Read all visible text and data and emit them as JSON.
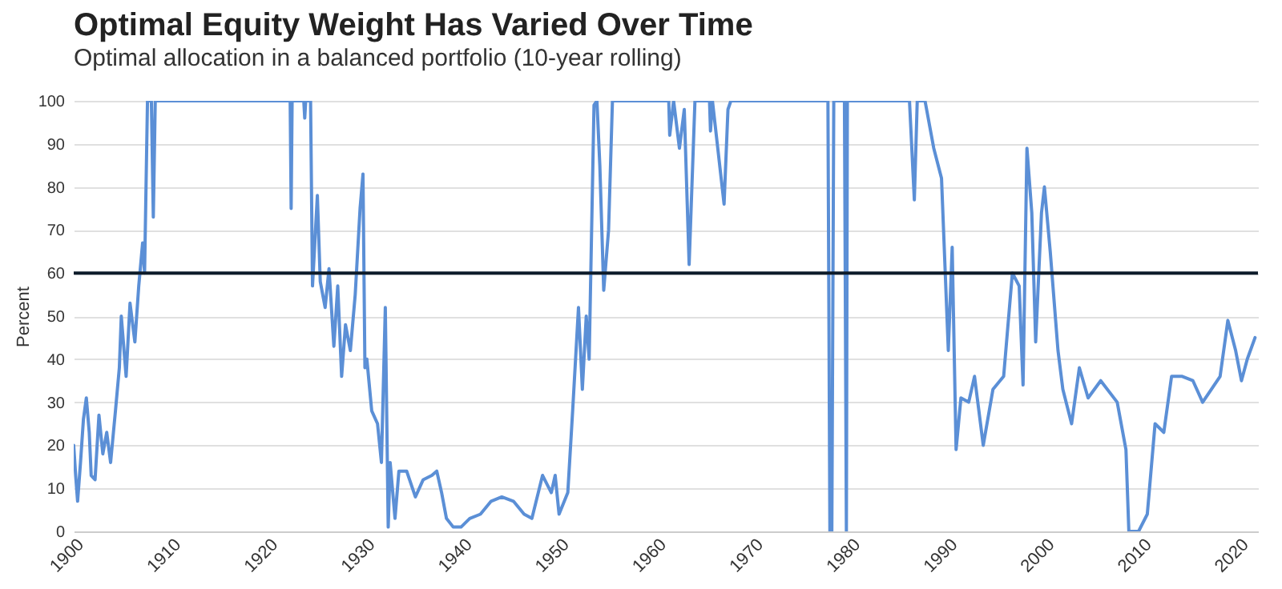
{
  "chart_data": {
    "type": "line",
    "title": "Optimal Equity Weight Has Varied Over Time",
    "subtitle": "Optimal allocation in a balanced portfolio (10-year rolling)",
    "ylabel": "Percent",
    "x": [
      1900,
      1900.2,
      1900.4,
      1900.7,
      1901.0,
      1901.3,
      1901.6,
      1901.8,
      1902.2,
      1902.6,
      1903.0,
      1903.4,
      1903.8,
      1904.3,
      1904.7,
      1904.9,
      1905.4,
      1905.8,
      1906.3,
      1906.7,
      1907.1,
      1907.3,
      1907.6,
      1908.0,
      1908.2,
      1908.4,
      1922.3,
      1922.4,
      1922.5,
      1922.6,
      1923.7,
      1923.8,
      1923.9,
      1924.4,
      1924.6,
      1925.1,
      1925.4,
      1925.9,
      1926.3,
      1926.8,
      1927.2,
      1927.6,
      1928.0,
      1928.5,
      1929.0,
      1929.5,
      1929.8,
      1930.0,
      1930.2,
      1930.7,
      1931.3,
      1931.7,
      1932.1,
      1932.4,
      1932.6,
      1933.1,
      1933.5,
      1934.3,
      1935.2,
      1936.0,
      1936.9,
      1937.4,
      1937.9,
      1938.4,
      1939.1,
      1939.9,
      1940.8,
      1941.9,
      1943.0,
      1944.1,
      1945.3,
      1946.4,
      1947.2,
      1948.3,
      1949.2,
      1949.6,
      1950.0,
      1950.9,
      1951.4,
      1952.0,
      1952.4,
      1952.8,
      1953.1,
      1953.6,
      1953.9,
      1954.2,
      1954.6,
      1955.1,
      1955.5,
      1961.3,
      1961.4,
      1961.8,
      1962.4,
      1962.9,
      1963.4,
      1964.0,
      1965.5,
      1965.6,
      1965.8,
      1967.0,
      1967.4,
      1967.7,
      1977.7,
      1977.9,
      1978.1,
      1978.3,
      1979.4,
      1979.6,
      1979.7,
      1986.1,
      1986.6,
      1986.9,
      1987.7,
      1988.6,
      1989.4,
      1990.1,
      1990.5,
      1990.9,
      1991.4,
      1992.2,
      1992.8,
      1993.7,
      1994.7,
      1995.8,
      1996.7,
      1997.4,
      1997.8,
      1998.2,
      1998.7,
      1999.1,
      1999.7,
      2000.0,
      2000.6,
      2001.4,
      2001.9,
      2002.8,
      2003.6,
      2004.5,
      2005.8,
      2007.5,
      2008.4,
      2008.7,
      2009.7,
      2010.6,
      2011.4,
      2012.3,
      2013.1,
      2014.2,
      2015.3,
      2016.3,
      2017.5,
      2018.1,
      2018.9,
      2019.7,
      2020.3,
      2020.9,
      2021.7
    ],
    "series": [
      {
        "color": "#5b8fd6",
        "values": [
          20,
          13,
          7,
          16,
          26,
          31,
          23,
          13,
          12,
          27,
          18,
          23,
          16,
          28,
          38,
          50,
          36,
          53,
          44,
          57,
          67,
          60,
          100,
          100,
          73,
          100,
          100,
          75,
          100,
          100,
          100,
          96,
          100,
          100,
          57,
          78,
          58,
          52,
          61,
          43,
          57,
          36,
          48,
          42,
          55,
          75,
          83,
          38,
          40,
          28,
          25,
          16,
          52,
          1,
          16,
          3,
          14,
          14,
          8,
          12,
          13,
          14,
          9,
          3,
          1,
          1,
          3,
          4,
          7,
          8,
          7,
          4,
          3,
          13,
          9,
          13,
          4,
          9,
          28,
          52,
          33,
          50,
          40,
          99,
          100,
          85,
          56,
          70,
          100,
          100,
          92,
          100,
          89,
          98,
          62,
          100,
          100,
          93,
          100,
          76,
          98,
          100,
          100,
          0,
          0,
          100,
          100,
          0,
          100,
          100,
          77,
          100,
          100,
          89,
          82,
          42,
          66,
          19,
          31,
          30,
          36,
          20,
          33,
          36,
          60,
          57,
          34,
          89,
          74,
          44,
          74,
          80,
          65,
          42,
          33,
          25,
          38,
          31,
          35,
          30,
          19,
          0,
          0,
          4,
          25,
          23,
          36,
          36,
          35,
          30,
          34,
          36,
          49,
          42,
          35,
          40,
          45
        ]
      }
    ],
    "xlim": [
      1900,
      2022
    ],
    "xticks": [
      1900,
      1910,
      1920,
      1930,
      1940,
      1950,
      1960,
      1970,
      1980,
      1990,
      2000,
      2010,
      2020
    ],
    "ylim": [
      0,
      100
    ],
    "yticks": [
      0,
      10,
      20,
      30,
      40,
      50,
      60,
      70,
      80,
      90,
      100
    ],
    "ref_lines": [
      {
        "axis": "y",
        "value": 60,
        "color": "#0d1b2a"
      }
    ],
    "grid": "y",
    "line_style": "solid"
  }
}
